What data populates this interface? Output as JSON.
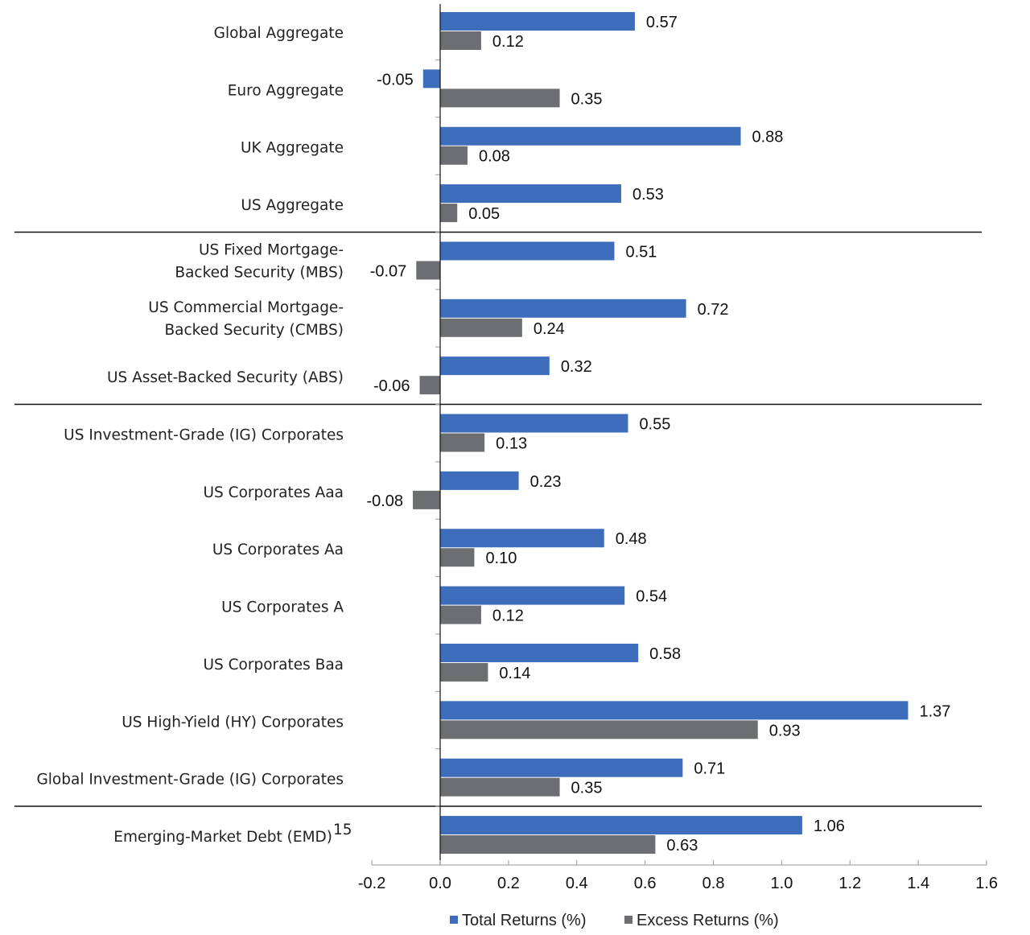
{
  "chart_data": {
    "type": "bar",
    "orientation": "horizontal",
    "categories": [
      "Global Aggregate",
      "Euro Aggregate",
      "UK Aggregate",
      "US Aggregate",
      "US Fixed Mortgage-\nBacked Security (MBS)",
      "US Commercial Mortgage-\nBacked Security (CMBS)",
      "US Asset-Backed Security (ABS)",
      "US Investment-Grade (IG) Corporates",
      "US Corporates Aaa",
      "US Corporates Aa",
      "US Corporates A",
      "US Corporates Baa",
      "US High-Yield (HY) Corporates",
      "Global Investment-Grade (IG) Corporates",
      "Emerging-Market Debt (EMD)"
    ],
    "category_footnotes": {
      "14": "15"
    },
    "group_separators_after": [
      3,
      6,
      13
    ],
    "series": [
      {
        "name": "Total Returns (%)",
        "color": "#3E6DBB",
        "values": [
          0.57,
          -0.05,
          0.88,
          0.53,
          0.51,
          0.72,
          0.32,
          0.55,
          0.23,
          0.48,
          0.54,
          0.58,
          1.37,
          0.71,
          1.06
        ],
        "labels": [
          "0.57",
          "-0.05",
          "0.88",
          "0.53",
          "0.51",
          "0.72",
          "0.32",
          "0.55",
          "0.23",
          "0.48",
          "0.54",
          "0.58",
          "1.37",
          "0.71",
          "1.06"
        ]
      },
      {
        "name": "Excess Returns (%)",
        "color": "#6D6E71",
        "values": [
          0.12,
          0.35,
          0.08,
          0.05,
          -0.07,
          0.24,
          -0.06,
          0.13,
          -0.08,
          0.1,
          0.12,
          0.14,
          0.93,
          0.35,
          0.63
        ],
        "labels": [
          "0.12",
          "0.35",
          "0.08",
          "0.05",
          "-0.07",
          "0.24",
          "-0.06",
          "0.13",
          "-0.08",
          "0.10",
          "0.12",
          "0.14",
          "0.93",
          "0.35",
          "0.63"
        ]
      }
    ],
    "xlim": [
      -0.2,
      1.6
    ],
    "xticks": [
      "-0.2",
      "0.0",
      "0.2",
      "0.4",
      "0.6",
      "0.8",
      "1.0",
      "1.2",
      "1.4",
      "1.6"
    ],
    "xlabel": "",
    "ylabel": "",
    "grid": false,
    "legend_position": "bottom"
  }
}
